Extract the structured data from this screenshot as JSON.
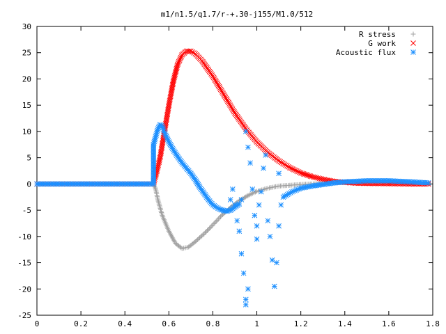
{
  "chart_data": {
    "type": "scatter",
    "title": "m1/n1.5/q1.7/r-+.30-j155/M1.0/512",
    "xlabel": "",
    "ylabel": "",
    "xlim": [
      0,
      1.8
    ],
    "ylim": [
      -25,
      30
    ],
    "x_ticks": [
      "0",
      "0.2",
      "0.4",
      "0.6",
      "0.8",
      "1",
      "1.2",
      "1.4",
      "1.6",
      "1.8"
    ],
    "y_ticks": [
      "30",
      "25",
      "20",
      "15",
      "10",
      "5",
      "0",
      "-5",
      "-10",
      "-15",
      "-20",
      "-25"
    ],
    "grid": false,
    "legend_position": "top-right",
    "series": [
      {
        "name": "R stress",
        "marker": "+",
        "color": "#a0a0a0",
        "points": [
          [
            0.0,
            0.0
          ],
          [
            0.1,
            0.0
          ],
          [
            0.2,
            0.0
          ],
          [
            0.3,
            0.0
          ],
          [
            0.4,
            0.0
          ],
          [
            0.5,
            0.0
          ],
          [
            0.53,
            0.0
          ],
          [
            0.54,
            -1.0
          ],
          [
            0.55,
            -3.0
          ],
          [
            0.57,
            -6.0
          ],
          [
            0.6,
            -9.0
          ],
          [
            0.63,
            -11.3
          ],
          [
            0.66,
            -12.3
          ],
          [
            0.69,
            -12.0
          ],
          [
            0.72,
            -11.0
          ],
          [
            0.76,
            -9.5
          ],
          [
            0.8,
            -7.8
          ],
          [
            0.84,
            -6.0
          ],
          [
            0.88,
            -4.5
          ],
          [
            0.92,
            -3.2
          ],
          [
            0.96,
            -2.2
          ],
          [
            1.0,
            -1.4
          ],
          [
            1.05,
            -0.8
          ],
          [
            1.1,
            -0.4
          ],
          [
            1.2,
            -0.1
          ],
          [
            1.3,
            0.1
          ],
          [
            1.4,
            0.3
          ],
          [
            1.5,
            0.5
          ],
          [
            1.6,
            0.5
          ],
          [
            1.7,
            0.3
          ],
          [
            1.78,
            0.1
          ]
        ]
      },
      {
        "name": "G work",
        "marker": "x",
        "color": "#ff0000",
        "points": [
          [
            0.0,
            0.0
          ],
          [
            0.1,
            0.0
          ],
          [
            0.2,
            0.0
          ],
          [
            0.3,
            0.0
          ],
          [
            0.4,
            0.0
          ],
          [
            0.5,
            0.0
          ],
          [
            0.53,
            0.0
          ],
          [
            0.54,
            1.5
          ],
          [
            0.56,
            5.0
          ],
          [
            0.58,
            10.0
          ],
          [
            0.6,
            15.0
          ],
          [
            0.62,
            19.5
          ],
          [
            0.64,
            22.8
          ],
          [
            0.66,
            24.6
          ],
          [
            0.68,
            25.3
          ],
          [
            0.7,
            25.3
          ],
          [
            0.72,
            24.8
          ],
          [
            0.75,
            23.5
          ],
          [
            0.8,
            20.5
          ],
          [
            0.85,
            17.0
          ],
          [
            0.9,
            13.5
          ],
          [
            0.95,
            10.5
          ],
          [
            1.0,
            8.0
          ],
          [
            1.05,
            6.0
          ],
          [
            1.1,
            4.4
          ],
          [
            1.15,
            3.1
          ],
          [
            1.2,
            2.1
          ],
          [
            1.25,
            1.4
          ],
          [
            1.3,
            0.9
          ],
          [
            1.35,
            0.5
          ],
          [
            1.4,
            0.3
          ],
          [
            1.45,
            0.15
          ],
          [
            1.5,
            0.1
          ],
          [
            1.6,
            0.05
          ],
          [
            1.7,
            0.0
          ],
          [
            1.78,
            0.0
          ]
        ]
      },
      {
        "name": "Acoustic flux",
        "marker": "*",
        "color": "#1e90ff",
        "points": [
          [
            0.0,
            0.0
          ],
          [
            0.1,
            0.0
          ],
          [
            0.2,
            0.0
          ],
          [
            0.3,
            0.0
          ],
          [
            0.4,
            0.0
          ],
          [
            0.5,
            0.0
          ],
          [
            0.53,
            0.0
          ],
          [
            0.53,
            3.5
          ],
          [
            0.53,
            7.5
          ],
          [
            0.54,
            9.0
          ],
          [
            0.55,
            10.5
          ],
          [
            0.56,
            11.3
          ],
          [
            0.57,
            11.0
          ],
          [
            0.58,
            9.8
          ],
          [
            0.6,
            8.0
          ],
          [
            0.62,
            6.5
          ],
          [
            0.64,
            5.2
          ],
          [
            0.66,
            4.0
          ],
          [
            0.68,
            3.0
          ],
          [
            0.7,
            2.0
          ],
          [
            0.72,
            0.8
          ],
          [
            0.74,
            -0.6
          ],
          [
            0.76,
            -1.8
          ],
          [
            0.78,
            -3.0
          ],
          [
            0.8,
            -4.0
          ],
          [
            0.83,
            -4.8
          ],
          [
            0.86,
            -5.2
          ],
          [
            0.88,
            -5.0
          ],
          [
            0.9,
            -4.4
          ],
          [
            0.92,
            -3.8
          ],
          [
            0.88,
            -3.0
          ],
          [
            0.89,
            -1.0
          ],
          [
            0.9,
            -4.0
          ],
          [
            0.91,
            -7.0
          ],
          [
            0.92,
            -9.0
          ],
          [
            0.93,
            -13.3
          ],
          [
            0.93,
            -3.0
          ],
          [
            0.94,
            -17.0
          ],
          [
            0.95,
            -23.0
          ],
          [
            0.95,
            -22.0
          ],
          [
            0.96,
            -20.0
          ],
          [
            0.95,
            10.0
          ],
          [
            0.96,
            7.0
          ],
          [
            0.97,
            4.0
          ],
          [
            0.98,
            -1.0
          ],
          [
            0.99,
            -6.0
          ],
          [
            1.0,
            -8.0
          ],
          [
            1.0,
            -10.5
          ],
          [
            1.01,
            -4.0
          ],
          [
            1.02,
            -1.5
          ],
          [
            1.03,
            3.0
          ],
          [
            1.04,
            5.5
          ],
          [
            1.05,
            -7.0
          ],
          [
            1.06,
            -10.0
          ],
          [
            1.07,
            -14.5
          ],
          [
            1.08,
            -19.5
          ],
          [
            1.09,
            -15.0
          ],
          [
            1.1,
            -8.0
          ],
          [
            1.11,
            -4.0
          ],
          [
            1.1,
            2.0
          ],
          [
            1.12,
            -2.5
          ],
          [
            1.14,
            -2.0
          ],
          [
            1.16,
            -1.5
          ],
          [
            1.2,
            -0.8
          ],
          [
            1.25,
            -0.4
          ],
          [
            1.3,
            -0.1
          ],
          [
            1.35,
            0.2
          ],
          [
            1.4,
            0.4
          ],
          [
            1.5,
            0.6
          ],
          [
            1.6,
            0.6
          ],
          [
            1.7,
            0.4
          ],
          [
            1.78,
            0.2
          ]
        ]
      }
    ]
  }
}
